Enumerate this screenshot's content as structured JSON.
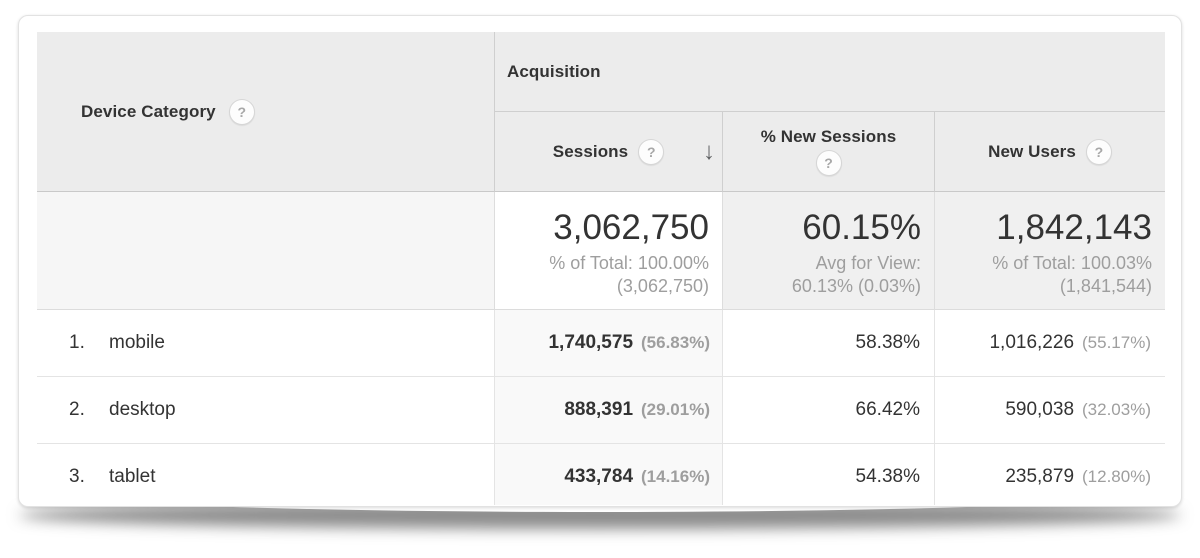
{
  "table": {
    "group_header": "Acquisition",
    "dimension_column": {
      "label": "Device Category"
    },
    "metric_columns": [
      {
        "label": "Sessions",
        "sorted": true
      },
      {
        "label": "% New Sessions"
      },
      {
        "label": "New Users"
      }
    ],
    "help_glyph": "?",
    "sort_arrow": "↓",
    "summary": {
      "sessions": {
        "value": "3,062,750",
        "detail_line1": "% of Total: 100.00%",
        "detail_line2": "(3,062,750)"
      },
      "percent_new_sessions": {
        "value": "60.15%",
        "detail_line1": "Avg for View:",
        "detail_line2": "60.13% (0.03%)"
      },
      "new_users": {
        "value": "1,842,143",
        "detail_line1": "% of Total: 100.03%",
        "detail_line2": "(1,841,544)"
      }
    },
    "rows": [
      {
        "rank": "1.",
        "device": "mobile",
        "sessions": "1,740,575",
        "sessions_share": "(56.83%)",
        "percent_new_sessions": "58.38%",
        "new_users": "1,016,226",
        "new_users_share": "(55.17%)"
      },
      {
        "rank": "2.",
        "device": "desktop",
        "sessions": "888,391",
        "sessions_share": "(29.01%)",
        "percent_new_sessions": "66.42%",
        "new_users": "590,038",
        "new_users_share": "(32.03%)"
      },
      {
        "rank": "3.",
        "device": "tablet",
        "sessions": "433,784",
        "sessions_share": "(14.16%)",
        "percent_new_sessions": "54.38%",
        "new_users": "235,879",
        "new_users_share": "(12.80%)"
      }
    ],
    "colors": {
      "header_bg": "#ececec",
      "summary_metric_bg": "#f0f0f0",
      "summary_dimension_bg": "#f6f6f6",
      "sorted_column_bg": "#f9f9f9",
      "text_primary": "#333333",
      "text_muted": "#9e9e9e"
    }
  }
}
